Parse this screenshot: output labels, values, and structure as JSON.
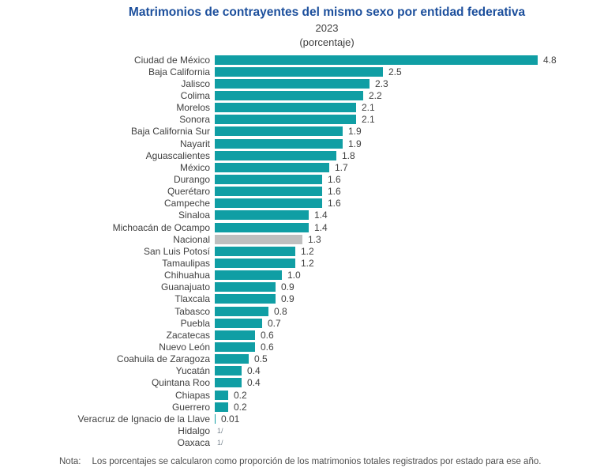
{
  "header": {
    "title": "Matrimonios de contrayentes del mismo sexo por entidad federativa",
    "year": "2023",
    "unit": "(porcentaje)"
  },
  "note": {
    "label": "Nota:",
    "text": "Los porcentajes se calcularon como proporción de los matrimonios totales registrados por estado para ese año."
  },
  "palette": {
    "bar": "#109EA4",
    "highlight_bar": "#BFBFBF",
    "title_text": "#1C4F9C",
    "body_text": "#404040",
    "note_text": "#4D4D4D",
    "footnote_marker_text": "#7A8791"
  },
  "chart_data": {
    "type": "bar",
    "orientation": "horizontal",
    "title": "Matrimonios de contrayentes del mismo sexo por entidad federativa",
    "subtitle": "2023",
    "unit_label": "(porcentaje)",
    "xlim": [
      0,
      5
    ],
    "grid": false,
    "legend": "none",
    "highlighted_category": "Nacional",
    "footnote_symbol": "1/",
    "rows": [
      {
        "label": "Ciudad de México",
        "value": 4.8,
        "display": "4.8"
      },
      {
        "label": "Baja California",
        "value": 2.5,
        "display": "2.5"
      },
      {
        "label": "Jalisco",
        "value": 2.3,
        "display": "2.3"
      },
      {
        "label": "Colima",
        "value": 2.2,
        "display": "2.2"
      },
      {
        "label": "Morelos",
        "value": 2.1,
        "display": "2.1"
      },
      {
        "label": "Sonora",
        "value": 2.1,
        "display": "2.1"
      },
      {
        "label": "Baja California Sur",
        "value": 1.9,
        "display": "1.9"
      },
      {
        "label": "Nayarit",
        "value": 1.9,
        "display": "1.9"
      },
      {
        "label": "Aguascalientes",
        "value": 1.8,
        "display": "1.8"
      },
      {
        "label": "México",
        "value": 1.7,
        "display": "1.7"
      },
      {
        "label": "Durango",
        "value": 1.6,
        "display": "1.6"
      },
      {
        "label": "Querétaro",
        "value": 1.6,
        "display": "1.6"
      },
      {
        "label": "Campeche",
        "value": 1.6,
        "display": "1.6"
      },
      {
        "label": "Sinaloa",
        "value": 1.4,
        "display": "1.4"
      },
      {
        "label": "Michoacán de Ocampo",
        "value": 1.4,
        "display": "1.4"
      },
      {
        "label": "Nacional",
        "value": 1.3,
        "display": "1.3",
        "highlight": true
      },
      {
        "label": "San Luis Potosí",
        "value": 1.2,
        "display": "1.2"
      },
      {
        "label": "Tamaulipas",
        "value": 1.2,
        "display": "1.2"
      },
      {
        "label": "Chihuahua",
        "value": 1.0,
        "display": "1.0"
      },
      {
        "label": "Guanajuato",
        "value": 0.9,
        "display": "0.9"
      },
      {
        "label": "Tlaxcala",
        "value": 0.9,
        "display": "0.9"
      },
      {
        "label": "Tabasco",
        "value": 0.8,
        "display": "0.8"
      },
      {
        "label": "Puebla",
        "value": 0.7,
        "display": "0.7"
      },
      {
        "label": "Zacatecas",
        "value": 0.6,
        "display": "0.6"
      },
      {
        "label": "Nuevo León",
        "value": 0.6,
        "display": "0.6"
      },
      {
        "label": "Coahuila de Zaragoza",
        "value": 0.5,
        "display": "0.5"
      },
      {
        "label": "Yucatán",
        "value": 0.4,
        "display": "0.4"
      },
      {
        "label": "Quintana Roo",
        "value": 0.4,
        "display": "0.4"
      },
      {
        "label": "Chiapas",
        "value": 0.2,
        "display": "0.2"
      },
      {
        "label": "Guerrero",
        "value": 0.2,
        "display": "0.2"
      },
      {
        "label": "Veracruz de Ignacio de la Llave",
        "value": 0.01,
        "display": "0.01"
      },
      {
        "label": "Hidalgo",
        "value": null,
        "display": "1/",
        "footnote": true
      },
      {
        "label": "Oaxaca",
        "value": null,
        "display": "1/",
        "footnote": true
      }
    ]
  }
}
